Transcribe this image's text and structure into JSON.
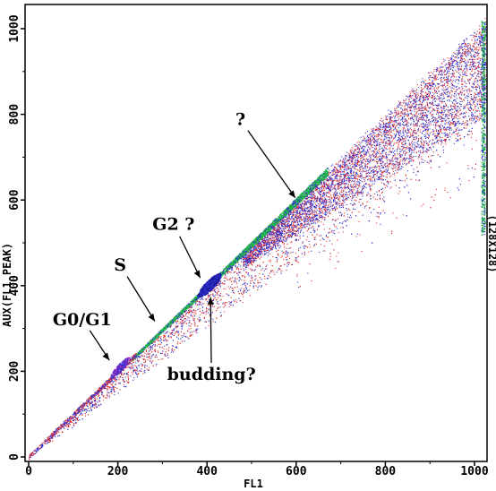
{
  "chart_data": {
    "type": "scatter",
    "xlabel": "FL1",
    "ylabel": "AUX(FL1 PEAK)",
    "right_label": "(128X128)",
    "xlim": [
      0,
      1023
    ],
    "ylim": [
      0,
      1023
    ],
    "x_ticks": [
      "0",
      "200",
      "400",
      "600",
      "800",
      "1000"
    ],
    "y_ticks": [
      "0",
      "200",
      "400",
      "600",
      "800",
      "1000"
    ],
    "grid": false,
    "density_colors": {
      "low": "#e23030",
      "medium": "#3030cc",
      "high": "#22b84a",
      "peak": "#8a28c8",
      "core": "#1818a0"
    },
    "populations": [
      {
        "label": "G0/G1",
        "x": 200,
        "y": 205
      },
      {
        "label": "S",
        "x": 295,
        "y": 310
      },
      {
        "label": "G2 ?",
        "x": 405,
        "y": 405
      },
      {
        "label": "budding?",
        "x": 415,
        "y": 395
      },
      {
        "label": "?",
        "x": 600,
        "y": 605
      }
    ],
    "annotations": [
      {
        "text": "?",
        "tx": 475,
        "ty": 775,
        "ax": 598,
        "ay": 605
      },
      {
        "text": "G2 ?",
        "tx": 325,
        "ty": 530,
        "ax": 385,
        "ay": 418
      },
      {
        "text": "S",
        "tx": 205,
        "ty": 435,
        "ax": 283,
        "ay": 317
      },
      {
        "text": "G0/G1",
        "tx": 120,
        "ty": 308,
        "ax": 181,
        "ay": 226
      },
      {
        "text": "budding?",
        "tx": 410,
        "ty": 180,
        "ax": 408,
        "ay": 373
      }
    ]
  }
}
